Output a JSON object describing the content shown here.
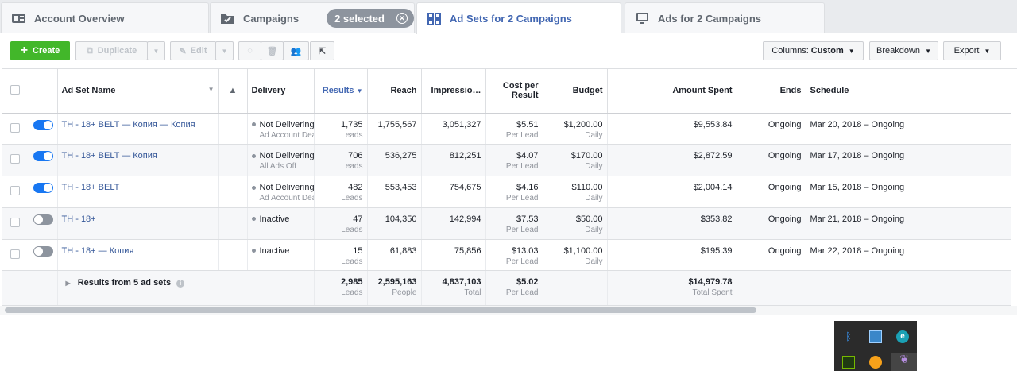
{
  "tabs": {
    "account": "Account Overview",
    "campaigns": "Campaigns",
    "selected": "2 selected",
    "adsets": "Ad Sets for 2 Campaigns",
    "ads": "Ads for 2 Campaigns"
  },
  "toolbar": {
    "create": "Create",
    "duplicate": "Duplicate",
    "edit": "Edit",
    "columns_label": "Columns:",
    "columns_value": "Custom",
    "breakdown": "Breakdown",
    "export": "Export"
  },
  "headers": {
    "name": "Ad Set Name",
    "delivery": "Delivery",
    "results": "Results",
    "reach": "Reach",
    "impressions": "Impressio…",
    "cost1": "Cost per",
    "cost2": "Result",
    "budget": "Budget",
    "spent": "Amount Spent",
    "ends": "Ends",
    "schedule": "Schedule"
  },
  "rows": [
    {
      "name": "TH - 18+ BELT — Копия — Копия",
      "status": "Not Delivering",
      "status_sub": "Ad Account Dea",
      "results": "1,735",
      "results_sub": "Leads",
      "reach": "1,755,567",
      "impressions": "3,051,327",
      "cost": "$5.51",
      "cost_sub": "Per Lead",
      "budget": "$1,200.00",
      "budget_sub": "Daily",
      "spent": "$9,553.84",
      "ends": "Ongoing",
      "schedule": "Mar 20, 2018 – Ongoing"
    },
    {
      "name": "TH - 18+ BELT — Копия",
      "status": "Not Delivering",
      "status_sub": "All Ads Off",
      "results": "706",
      "results_sub": "Leads",
      "reach": "536,275",
      "impressions": "812,251",
      "cost": "$4.07",
      "cost_sub": "Per Lead",
      "budget": "$170.00",
      "budget_sub": "Daily",
      "spent": "$2,872.59",
      "ends": "Ongoing",
      "schedule": "Mar 17, 2018 – Ongoing"
    },
    {
      "name": "TH - 18+ BELT",
      "status": "Not Delivering",
      "status_sub": "Ad Account Dea",
      "results": "482",
      "results_sub": "Leads",
      "reach": "553,453",
      "impressions": "754,675",
      "cost": "$4.16",
      "cost_sub": "Per Lead",
      "budget": "$110.00",
      "budget_sub": "Daily",
      "spent": "$2,004.14",
      "ends": "Ongoing",
      "schedule": "Mar 15, 2018 – Ongoing"
    },
    {
      "name": "TH - 18+",
      "status": "Inactive",
      "status_sub": "",
      "results": "47",
      "results_sub": "Leads",
      "reach": "104,350",
      "impressions": "142,994",
      "cost": "$7.53",
      "cost_sub": "Per Lead",
      "budget": "$50.00",
      "budget_sub": "Daily",
      "spent": "$353.82",
      "ends": "Ongoing",
      "schedule": "Mar 21, 2018 – Ongoing"
    },
    {
      "name": "TH - 18+ — Копия",
      "status": "Inactive",
      "status_sub": "",
      "results": "15",
      "results_sub": "Leads",
      "reach": "61,883",
      "impressions": "75,856",
      "cost": "$13.03",
      "cost_sub": "Per Lead",
      "budget": "$1,100.00",
      "budget_sub": "Daily",
      "spent": "$195.39",
      "ends": "Ongoing",
      "schedule": "Mar 22, 2018 – Ongoing"
    }
  ],
  "toggle_states": [
    true,
    true,
    true,
    false,
    false
  ],
  "total": {
    "label": "Results from 5 ad sets",
    "results": "2,985",
    "results_sub": "Leads",
    "reach": "2,595,163",
    "reach_sub": "People",
    "impressions": "4,837,103",
    "impressions_sub": "Total",
    "cost": "$5.02",
    "cost_sub": "Per Lead",
    "spent": "$14,979.78",
    "spent_sub": "Total Spent"
  },
  "colors": {
    "accent": "#4267b2",
    "create": "#42b72a",
    "toggle_on": "#1877f2"
  }
}
